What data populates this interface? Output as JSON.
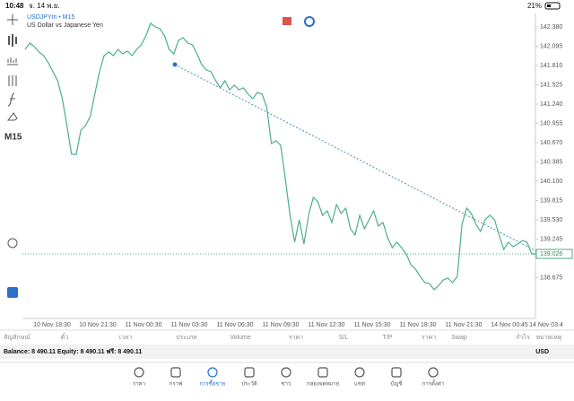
{
  "status_bar": {
    "time": "10:48",
    "date": "จ. 14 พ.ย.",
    "battery": "21%"
  },
  "chart": {
    "type": "line",
    "symbol": "USDJPYm • M15",
    "description": "US Dollar vs Japanese Yen",
    "timeframe": "M15",
    "color": "#4caf86",
    "values": [
      142.049,
      142.142,
      142.089,
      142.009,
      141.956,
      141.85,
      141.718,
      141.585,
      141.32,
      140.922,
      140.498,
      140.498,
      140.856,
      140.922,
      141.055,
      141.386,
      141.718,
      141.956,
      142.009,
      141.956,
      142.049,
      141.983,
      142.022,
      141.956,
      142.049,
      142.115,
      142.248,
      142.433,
      142.38,
      142.354,
      142.248,
      142.049,
      141.983,
      142.181,
      142.221,
      142.142,
      142.115,
      141.983,
      141.824,
      141.744,
      141.718,
      141.585,
      141.479,
      141.585,
      141.452,
      141.519,
      141.452,
      141.479,
      141.386,
      141.32,
      141.413,
      141.386,
      141.187,
      140.657,
      140.697,
      140.631,
      140.127,
      139.597,
      139.199,
      139.53,
      139.172,
      139.597,
      139.862,
      139.795,
      139.597,
      139.663,
      139.491,
      139.756,
      139.623,
      139.703,
      139.398,
      139.305,
      139.597,
      139.398,
      139.53,
      139.663,
      139.437,
      139.491,
      139.265,
      139.119,
      139.199,
      139.119,
      139.027,
      138.867,
      138.801,
      138.695,
      138.602,
      138.589,
      138.496,
      138.563,
      138.642,
      138.669,
      138.602,
      138.695,
      139.464,
      139.703,
      139.623,
      139.464,
      139.358,
      139.53,
      139.597,
      139.53,
      139.305,
      139.093,
      139.199,
      139.133,
      139.172,
      139.225,
      139.199,
      139.027,
      139.027
    ],
    "current_price": {
      "value": 139.026,
      "label": "139.026"
    },
    "ylim": [
      138.072,
      142.579
    ],
    "yticks": [
      {
        "value": 142.38,
        "label": "142.380"
      },
      {
        "value": 142.095,
        "label": "142.095"
      },
      {
        "value": 141.81,
        "label": "141.810"
      },
      {
        "value": 141.525,
        "label": "141.525"
      },
      {
        "value": 141.24,
        "label": "141.240"
      },
      {
        "value": 140.955,
        "label": "140.955"
      },
      {
        "value": 140.67,
        "label": "140.670"
      },
      {
        "value": 140.385,
        "label": "140.385"
      },
      {
        "value": 140.1,
        "label": "140.100"
      },
      {
        "value": 139.815,
        "label": "139.815"
      },
      {
        "value": 139.53,
        "label": "139.530"
      },
      {
        "value": 139.245,
        "label": "139.245"
      },
      {
        "value": 138.675,
        "label": "138.675"
      }
    ],
    "xlabels": [
      "10 Nov 18:30",
      "10 Nov 21:30",
      "11 Nov 00:30",
      "11 Nov 03:30",
      "11 Nov 06:30",
      "11 Nov 09:30",
      "11 Nov 12:30",
      "11 Nov 15:30",
      "11 Nov 18:30",
      "11 Nov 21:30",
      "14 Nov 00:45",
      "14 Nov 03:4"
    ]
  },
  "table": {
    "columns": [
      "สัญลักษณ์",
      "ตั๋ว",
      "เวลา",
      "ประเภท",
      "Volume",
      "ราคา",
      "S/L",
      "T/P",
      "ราคา",
      "Swap",
      "กำไร",
      "หมายเหตุ"
    ],
    "balance": "Balance: 8 490.11 Equity: 8 490.11 ฟรี: 8 490.11",
    "currency": "USD"
  },
  "tabs": [
    "ราคา",
    "กราฟ",
    "การซื้อขาย",
    "ประวัติ",
    "ข่าว",
    "กล่องจดหมาย",
    "แชท",
    "บัญชี",
    "การตั้งค่า"
  ],
  "active_tab": 2
}
